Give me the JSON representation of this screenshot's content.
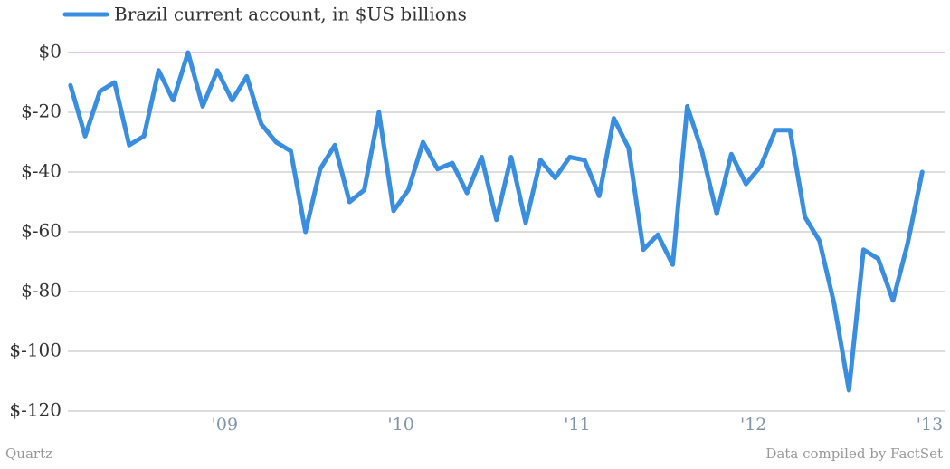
{
  "chart_data": {
    "type": "line",
    "series": [
      {
        "name": "Brazil current account, in $US billions",
        "color": "#3a8ee0",
        "values": [
          -11,
          -28,
          -13,
          -10,
          -31,
          -28,
          -6,
          -16,
          0,
          -18,
          -6,
          -16,
          -8,
          -24,
          -30,
          -33,
          -60,
          -39,
          -31,
          -50,
          -46,
          -20,
          -53,
          -46,
          -30,
          -39,
          -37,
          -47,
          -35,
          -56,
          -35,
          -57,
          -36,
          -42,
          -35,
          -36,
          -48,
          -22,
          -32,
          -66,
          -61,
          -71,
          -18,
          -33,
          -54,
          -34,
          -44,
          -38,
          -26,
          -26,
          -55,
          -63,
          -84,
          -113,
          -66,
          -69,
          -83,
          -64,
          -40
        ]
      }
    ],
    "x": [
      2008.125,
      2008.208,
      2008.292,
      2008.375,
      2008.458,
      2008.542,
      2008.625,
      2008.708,
      2008.792,
      2008.875,
      2008.958,
      2009.042,
      2009.125,
      2009.208,
      2009.292,
      2009.375,
      2009.458,
      2009.542,
      2009.625,
      2009.708,
      2009.792,
      2009.875,
      2009.958,
      2010.042,
      2010.125,
      2010.208,
      2010.292,
      2010.375,
      2010.458,
      2010.542,
      2010.625,
      2010.708,
      2010.792,
      2010.875,
      2010.958,
      2011.042,
      2011.125,
      2011.208,
      2011.292,
      2011.375,
      2011.458,
      2011.542,
      2011.625,
      2011.708,
      2011.792,
      2011.875,
      2011.958,
      2012.042,
      2012.125,
      2012.208,
      2012.292,
      2012.375,
      2012.458,
      2012.542,
      2012.625,
      2012.708,
      2012.792,
      2012.875,
      2012.958
    ],
    "xlim": [
      2008.11,
      2013.09
    ],
    "xticks": [
      {
        "value": 2009,
        "label": "'09"
      },
      {
        "value": 2010,
        "label": "'10"
      },
      {
        "value": 2011,
        "label": "'11"
      },
      {
        "value": 2012,
        "label": "'12"
      },
      {
        "value": 2013,
        "label": "'13"
      }
    ],
    "ylim": [
      -120,
      0
    ],
    "yticks": [
      {
        "value": -120,
        "label": "$-120"
      },
      {
        "value": -100,
        "label": "$-100"
      },
      {
        "value": -80,
        "label": "$-80"
      },
      {
        "value": -60,
        "label": "$-60"
      },
      {
        "value": -40,
        "label": "$-40"
      },
      {
        "value": -20,
        "label": "$-20"
      },
      {
        "value": 0,
        "label": "$0"
      }
    ],
    "grid": true,
    "zero_line_color": "#cc88dd",
    "source_left": "Quartz",
    "source_right": "Data compiled by FactSet"
  }
}
